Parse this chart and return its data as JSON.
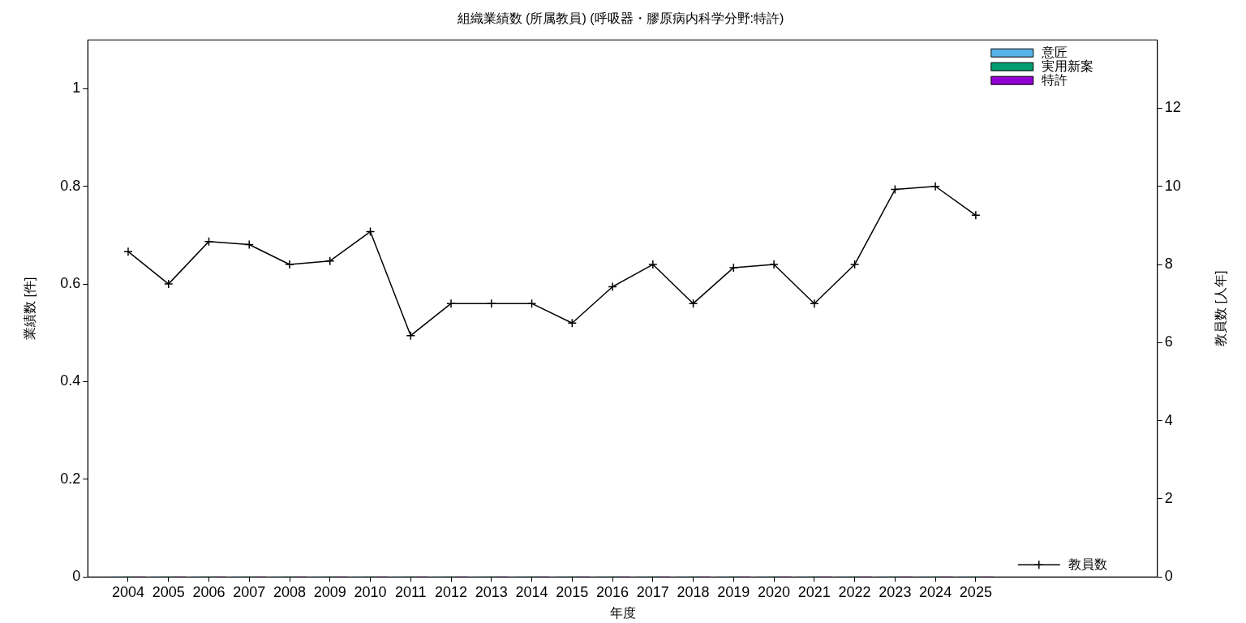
{
  "chart_data": {
    "type": "bar",
    "title": "組織業績数 (所属教員) (呼吸器・膠原病内科学分野:特許)",
    "xlabel": "年度",
    "ylabel": "業績数 [件]",
    "y2label": "教員数 [人年]",
    "x": [
      2004,
      2005,
      2006,
      2007,
      2008,
      2009,
      2010,
      2011,
      2012,
      2013,
      2014,
      2015,
      2016,
      2017,
      2018,
      2019,
      2020,
      2021,
      2022,
      2023,
      2024,
      2025
    ],
    "xlim": [
      2003,
      2029.5
    ],
    "xticks": [
      2004,
      2005,
      2006,
      2007,
      2008,
      2009,
      2010,
      2011,
      2012,
      2013,
      2014,
      2015,
      2016,
      2017,
      2018,
      2019,
      2020,
      2021,
      2022,
      2023,
      2024,
      2025
    ],
    "ylim": [
      0,
      1.1
    ],
    "yticks": [
      0,
      0.2,
      0.4,
      0.6,
      0.8,
      1
    ],
    "y2lim": [
      0,
      13.75
    ],
    "y2ticks": [
      0,
      2,
      4,
      6,
      8,
      10,
      12
    ],
    "series": [
      {
        "name": "意匠",
        "color": "#56b4e9",
        "values": [
          0,
          0,
          0,
          0,
          0,
          0,
          0,
          0,
          0,
          0,
          0,
          0,
          0,
          0,
          0,
          0,
          0,
          0,
          0,
          0,
          0,
          0
        ]
      },
      {
        "name": "実用新案",
        "color": "#009e73",
        "values": [
          0,
          0,
          0,
          0,
          0,
          0,
          0,
          0,
          0,
          0,
          0,
          0,
          0,
          0,
          0,
          0,
          0,
          0,
          0,
          0,
          0,
          0
        ]
      },
      {
        "name": "特許",
        "color": "#9400d3",
        "values": [
          0,
          0,
          0,
          0,
          0,
          0,
          0,
          0,
          0,
          0,
          0,
          0,
          0,
          0,
          0,
          0,
          0,
          0,
          0,
          0,
          0,
          0
        ]
      },
      {
        "name": "教員数",
        "type": "line",
        "axis": "y2",
        "color": "#000000",
        "values": [
          8.33,
          7.5,
          8.59,
          8.51,
          8,
          8.09,
          8.84,
          6.18,
          7,
          7,
          7,
          6.5,
          7.43,
          8,
          7,
          7.92,
          8,
          7,
          8,
          9.92,
          10,
          9.26
        ]
      }
    ],
    "grid": false,
    "legend": "right",
    "marker": "cross",
    "line_style": "solid"
  }
}
